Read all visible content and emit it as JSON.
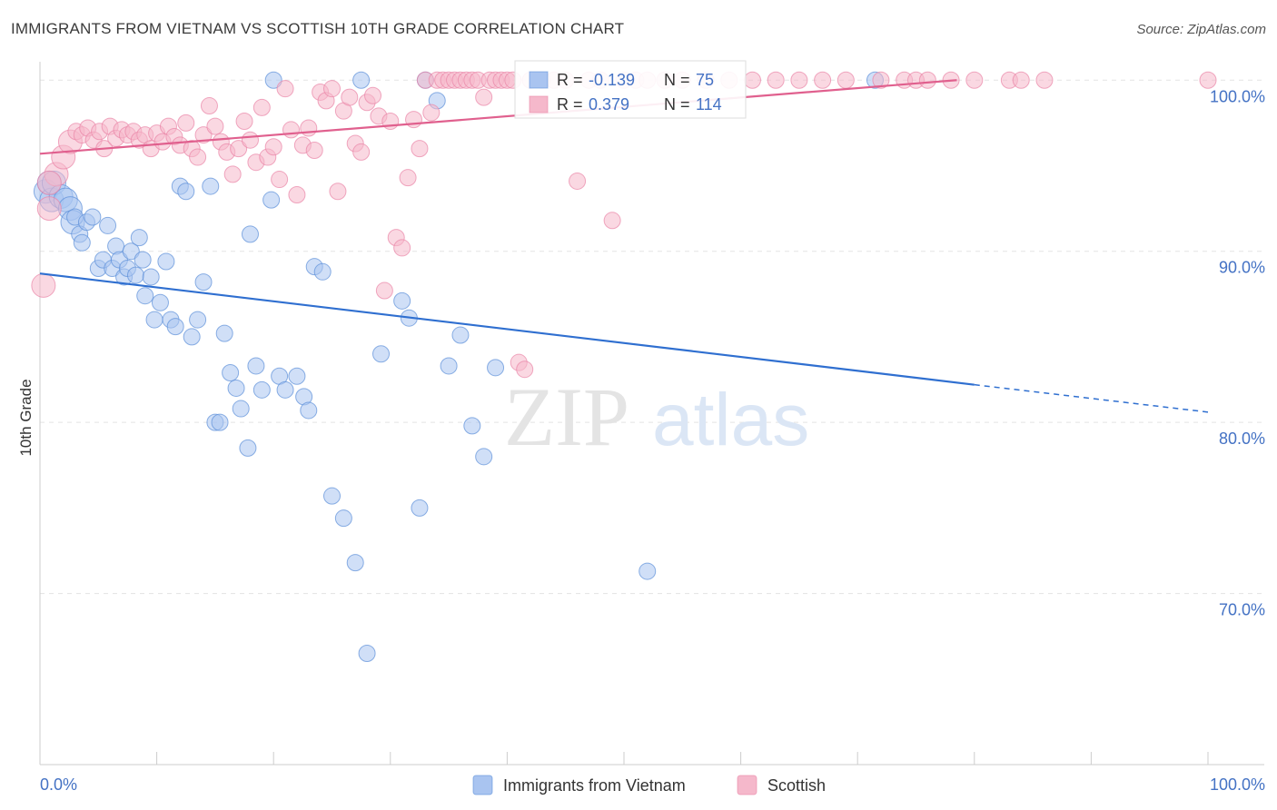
{
  "chart_data": {
    "type": "scatter",
    "title": "IMMIGRANTS FROM VIETNAM VS SCOTTISH 10TH GRADE CORRELATION CHART",
    "source": "Source: ZipAtlas.com",
    "xlabel": "",
    "ylabel": "10th Grade",
    "xlim": [
      0,
      100
    ],
    "ylim": [
      60,
      101.5
    ],
    "x_tick_labels": [
      "0.0%",
      "100.0%"
    ],
    "y_ticks": [
      {
        "value": 70,
        "label": "70.0%"
      },
      {
        "value": 80,
        "label": "80.0%"
      },
      {
        "value": 90,
        "label": "90.0%"
      },
      {
        "value": 100,
        "label": "100.0%"
      }
    ],
    "grid": true,
    "watermark": {
      "zip": "ZIP",
      "atlas": "atlas"
    },
    "legend": {
      "position": "bottom",
      "items": [
        {
          "label": "Immigrants from Vietnam",
          "color": "#a9c4f0"
        },
        {
          "label": "Scottish",
          "color": "#f5b8cb"
        }
      ]
    },
    "stats_box": [
      {
        "r_label": "R =",
        "r_value": "-0.139",
        "n_label": "N =",
        "n_value": "75",
        "color": "#a9c4f0"
      },
      {
        "r_label": "R =",
        "r_value": "0.379",
        "n_label": "N =",
        "n_value": "114",
        "color": "#f5b8cb"
      }
    ],
    "series": [
      {
        "name": "Immigrants from Vietnam",
        "color": "#5b8fd9",
        "fill": "#a9c4f0",
        "trend": {
          "x0": 0,
          "y0": 88.7,
          "x1": 80,
          "y1": 82.2,
          "dash_to_x": 100,
          "dash_to_y": 80.6,
          "color": "#2f6fd0"
        },
        "points": [
          [
            0.5,
            93.5
          ],
          [
            0.8,
            94.0
          ],
          [
            1.0,
            93.0
          ],
          [
            1.2,
            94.0
          ],
          [
            1.8,
            93.2
          ],
          [
            2.2,
            93.0
          ],
          [
            2.6,
            92.5
          ],
          [
            2.8,
            91.7
          ],
          [
            3.0,
            92.0
          ],
          [
            3.4,
            91.0
          ],
          [
            3.6,
            90.5
          ],
          [
            4.0,
            91.7
          ],
          [
            4.5,
            92.0
          ],
          [
            5.0,
            89.0
          ],
          [
            5.4,
            89.5
          ],
          [
            5.8,
            91.5
          ],
          [
            6.2,
            89.0
          ],
          [
            6.5,
            90.3
          ],
          [
            6.8,
            89.5
          ],
          [
            7.2,
            88.5
          ],
          [
            7.5,
            89.0
          ],
          [
            7.8,
            90.0
          ],
          [
            8.2,
            88.6
          ],
          [
            8.5,
            90.8
          ],
          [
            8.8,
            89.5
          ],
          [
            9.0,
            87.4
          ],
          [
            9.5,
            88.5
          ],
          [
            9.8,
            86.0
          ],
          [
            10.3,
            87.0
          ],
          [
            10.8,
            89.4
          ],
          [
            11.2,
            86.0
          ],
          [
            11.6,
            85.6
          ],
          [
            12.0,
            93.8
          ],
          [
            12.5,
            93.5
          ],
          [
            13.0,
            85.0
          ],
          [
            13.5,
            86.0
          ],
          [
            14.0,
            88.2
          ],
          [
            14.6,
            93.8
          ],
          [
            15.0,
            80.0
          ],
          [
            15.4,
            80.0
          ],
          [
            15.8,
            85.2
          ],
          [
            16.3,
            82.9
          ],
          [
            16.8,
            82.0
          ],
          [
            17.2,
            80.8
          ],
          [
            17.8,
            78.5
          ],
          [
            18.0,
            91.0
          ],
          [
            18.5,
            83.3
          ],
          [
            19.0,
            81.9
          ],
          [
            19.8,
            93.0
          ],
          [
            20.5,
            82.7
          ],
          [
            21.0,
            81.9
          ],
          [
            22.0,
            82.7
          ],
          [
            22.6,
            81.5
          ],
          [
            23.0,
            80.7
          ],
          [
            23.5,
            89.1
          ],
          [
            24.2,
            88.8
          ],
          [
            25.0,
            75.7
          ],
          [
            26.0,
            74.4
          ],
          [
            27.0,
            71.8
          ],
          [
            28.0,
            66.5
          ],
          [
            29.2,
            84.0
          ],
          [
            31.0,
            87.1
          ],
          [
            31.6,
            86.1
          ],
          [
            32.5,
            75.0
          ],
          [
            33.0,
            100.0
          ],
          [
            34.0,
            98.8
          ],
          [
            35.0,
            83.3
          ],
          [
            36.0,
            85.1
          ],
          [
            37.0,
            79.8
          ],
          [
            38.0,
            78.0
          ],
          [
            39.0,
            83.2
          ],
          [
            20.0,
            100.0
          ],
          [
            27.5,
            100.0
          ],
          [
            71.5,
            100.0
          ],
          [
            52.0,
            71.3
          ]
        ]
      },
      {
        "name": "Scottish",
        "color": "#e985a7",
        "fill": "#f5b8cb",
        "trend": {
          "x0": 0,
          "y0": 95.7,
          "x1": 78.5,
          "y1": 100.0,
          "color": "#e0608e"
        },
        "points": [
          [
            0.3,
            88.0
          ],
          [
            0.8,
            92.5
          ],
          [
            1.4,
            94.5
          ],
          [
            2.0,
            95.5
          ],
          [
            2.6,
            96.4
          ],
          [
            3.1,
            97.0
          ],
          [
            3.6,
            96.8
          ],
          [
            4.1,
            97.2
          ],
          [
            4.6,
            96.5
          ],
          [
            5.1,
            97.0
          ],
          [
            5.5,
            96.0
          ],
          [
            6.0,
            97.3
          ],
          [
            6.5,
            96.6
          ],
          [
            7.0,
            97.1
          ],
          [
            7.5,
            96.8
          ],
          [
            8.0,
            97.0
          ],
          [
            8.5,
            96.5
          ],
          [
            9.0,
            96.8
          ],
          [
            9.5,
            96.0
          ],
          [
            10.0,
            96.9
          ],
          [
            10.5,
            96.4
          ],
          [
            11.0,
            97.3
          ],
          [
            11.5,
            96.7
          ],
          [
            12.0,
            96.2
          ],
          [
            12.5,
            97.5
          ],
          [
            13.0,
            96.0
          ],
          [
            13.5,
            95.5
          ],
          [
            14.0,
            96.8
          ],
          [
            14.5,
            98.5
          ],
          [
            15.0,
            97.3
          ],
          [
            15.5,
            96.4
          ],
          [
            16.0,
            95.8
          ],
          [
            16.5,
            94.5
          ],
          [
            17.0,
            96.0
          ],
          [
            17.5,
            97.6
          ],
          [
            18.0,
            96.5
          ],
          [
            18.5,
            95.2
          ],
          [
            19.0,
            98.4
          ],
          [
            19.5,
            95.5
          ],
          [
            20.0,
            96.1
          ],
          [
            20.5,
            94.2
          ],
          [
            21.0,
            99.5
          ],
          [
            21.5,
            97.1
          ],
          [
            22.0,
            93.3
          ],
          [
            22.5,
            96.2
          ],
          [
            23.0,
            97.2
          ],
          [
            23.5,
            95.9
          ],
          [
            24.0,
            99.3
          ],
          [
            24.5,
            98.8
          ],
          [
            25.0,
            99.5
          ],
          [
            25.5,
            93.5
          ],
          [
            26.0,
            98.2
          ],
          [
            26.5,
            99.0
          ],
          [
            27.0,
            96.3
          ],
          [
            27.5,
            95.8
          ],
          [
            28.0,
            98.7
          ],
          [
            28.5,
            99.1
          ],
          [
            29.0,
            97.9
          ],
          [
            29.5,
            87.7
          ],
          [
            30.0,
            97.6
          ],
          [
            30.5,
            90.8
          ],
          [
            31.0,
            90.2
          ],
          [
            31.5,
            94.3
          ],
          [
            32.0,
            97.7
          ],
          [
            32.5,
            96.0
          ],
          [
            33.0,
            100.0
          ],
          [
            33.5,
            98.1
          ],
          [
            34.0,
            100.0
          ],
          [
            34.5,
            100.0
          ],
          [
            35.0,
            100.0
          ],
          [
            35.5,
            100.0
          ],
          [
            36.0,
            100.0
          ],
          [
            36.5,
            100.0
          ],
          [
            37.0,
            100.0
          ],
          [
            37.5,
            100.0
          ],
          [
            38.0,
            99.0
          ],
          [
            38.5,
            100.0
          ],
          [
            39.0,
            100.0
          ],
          [
            39.5,
            100.0
          ],
          [
            40.0,
            100.0
          ],
          [
            40.5,
            100.0
          ],
          [
            41.0,
            83.5
          ],
          [
            41.5,
            83.1
          ],
          [
            42.0,
            100.0
          ],
          [
            43.0,
            100.0
          ],
          [
            44.0,
            100.0
          ],
          [
            45.0,
            100.0
          ],
          [
            46.0,
            94.1
          ],
          [
            47.0,
            100.0
          ],
          [
            48.0,
            100.0
          ],
          [
            49.0,
            91.8
          ],
          [
            50.0,
            100.0
          ],
          [
            51.0,
            100.0
          ],
          [
            52.0,
            100.0
          ],
          [
            53.5,
            100.0
          ],
          [
            55.0,
            100.0
          ],
          [
            57.0,
            100.0
          ],
          [
            59.0,
            100.0
          ],
          [
            61.0,
            100.0
          ],
          [
            63.0,
            100.0
          ],
          [
            65.0,
            100.0
          ],
          [
            67.0,
            100.0
          ],
          [
            69.0,
            100.0
          ],
          [
            72.0,
            100.0
          ],
          [
            74.0,
            100.0
          ],
          [
            75.0,
            100.0
          ],
          [
            76.0,
            100.0
          ],
          [
            78.0,
            100.0
          ],
          [
            80.0,
            100.0
          ],
          [
            83.0,
            100.0
          ],
          [
            84.0,
            100.0
          ],
          [
            86.0,
            100.0
          ],
          [
            100.0,
            100.0
          ],
          [
            0.8,
            94.0
          ]
        ]
      }
    ]
  }
}
